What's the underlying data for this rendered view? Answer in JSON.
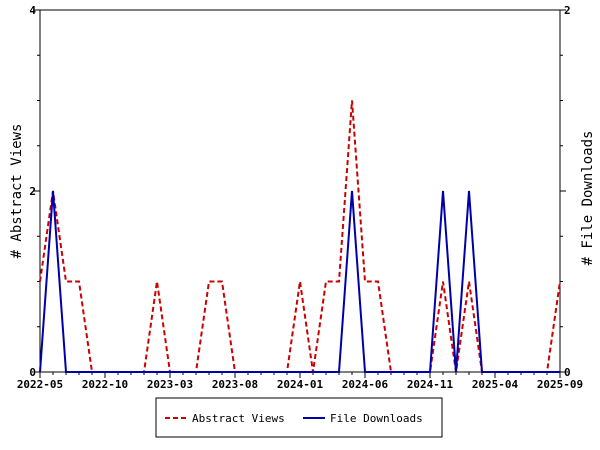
{
  "chart_data": {
    "type": "line",
    "x_tick_labels": [
      "2022-05",
      "2022-10",
      "2023-03",
      "2023-08",
      "2024-01",
      "2024-06",
      "2024-11",
      "2025-04",
      "2025-09"
    ],
    "x_months": [
      "2022-05",
      "2022-06",
      "2022-07",
      "2022-08",
      "2022-09",
      "2022-10",
      "2022-11",
      "2022-12",
      "2023-01",
      "2023-02",
      "2023-03",
      "2023-04",
      "2023-05",
      "2023-06",
      "2023-07",
      "2023-08",
      "2023-09",
      "2023-10",
      "2023-11",
      "2023-12",
      "2024-01",
      "2024-02",
      "2024-03",
      "2024-04",
      "2024-05",
      "2024-06",
      "2024-07",
      "2024-08",
      "2024-09",
      "2024-10",
      "2024-11",
      "2024-12",
      "2025-01",
      "2025-02",
      "2025-03",
      "2025-04",
      "2025-05",
      "2025-06",
      "2025-07",
      "2025-08",
      "2025-09"
    ],
    "series": [
      {
        "name": "Abstract Views",
        "axis": "left",
        "color": "#cc0000",
        "dash": "dashed",
        "values": [
          1,
          2,
          1,
          1,
          0,
          0,
          0,
          0,
          0,
          1,
          0,
          0,
          0,
          1,
          1,
          0,
          0,
          0,
          0,
          0,
          1,
          0,
          1,
          1,
          3,
          1,
          1,
          0,
          0,
          0,
          0,
          1,
          0,
          1,
          0,
          0,
          0,
          0,
          0,
          0,
          1
        ]
      },
      {
        "name": "File Downloads",
        "axis": "right",
        "color": "#0000aa",
        "dash": "solid",
        "values": [
          0,
          1,
          0,
          0,
          0,
          0,
          0,
          0,
          0,
          0,
          0,
          0,
          0,
          0,
          0,
          0,
          0,
          0,
          0,
          0,
          0,
          0,
          0,
          0,
          1,
          0,
          0,
          0,
          0,
          0,
          0,
          1,
          0,
          1,
          0,
          0,
          0,
          0,
          0,
          0,
          0
        ]
      }
    ],
    "left_axis": {
      "label": "# Abstract Views",
      "ticks": [
        "0",
        "2",
        "4"
      ],
      "range": [
        0,
        4
      ]
    },
    "right_axis": {
      "label": "# File Downloads",
      "ticks": [
        "0",
        "1",
        "2"
      ],
      "range": [
        0,
        2
      ]
    },
    "grid": false,
    "legend_position": "bottom"
  }
}
